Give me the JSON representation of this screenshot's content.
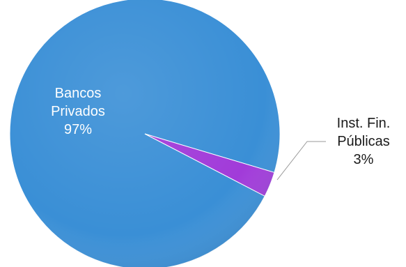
{
  "chart_data": {
    "type": "pie",
    "slices": [
      {
        "category": "Bancos Privados",
        "label_lines": [
          "Bancos",
          "Privados",
          "97%"
        ],
        "value": 97,
        "color": "#3a8fd6"
      },
      {
        "category": "Inst. Fin. Públicas",
        "label_lines": [
          "Inst. Fin.",
          "Públicas",
          "3%"
        ],
        "value": 3,
        "color": "#a13bd9"
      }
    ],
    "legend": "none",
    "data_labels": "category and percentage"
  }
}
